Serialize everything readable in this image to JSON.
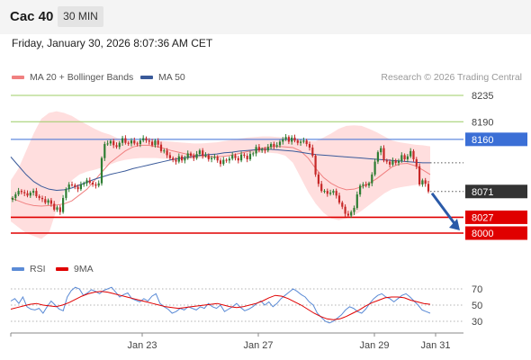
{
  "header": {
    "instrument": "Cac 40",
    "timeframe": "30 MIN"
  },
  "datetime": "Friday, January 30, 2026 8:07:36 AM CET",
  "legend": {
    "bollinger": "MA 20 + Bollinger Bands",
    "ma50": "MA 50",
    "credit": "Research © 2026 Trading Central"
  },
  "rsi_legend": {
    "rsi": "RSI",
    "ma9": "9MA"
  },
  "colors": {
    "candle_up": "#2e7d32",
    "candle_down": "#c62828",
    "bollinger_fill": "#ffd3d3",
    "ma20": "#f08080",
    "ma50": "#3a5a9a",
    "resistance": "#3b6fd6",
    "support": "#e00000",
    "target_line": "#9ccc65",
    "last_price": "#333333",
    "arrow": "#2a5aa8",
    "rsi": "#5b8bd6",
    "rsi_ma": "#e00000"
  },
  "chart_data": [
    {
      "type": "candlestick",
      "title": "Cac 40",
      "ylim": [
        7975,
        8250
      ],
      "x_ticks": [
        "Jan 23",
        "Jan 27",
        "Jan 29",
        "Jan 31"
      ],
      "levels": [
        {
          "value": 8235,
          "label": "8235",
          "kind": "target"
        },
        {
          "value": 8190,
          "label": "8190",
          "kind": "target"
        },
        {
          "value": 8160,
          "label": "8160",
          "kind": "resistance"
        },
        {
          "value": 8071,
          "label": "8071",
          "kind": "last"
        },
        {
          "value": 8027,
          "label": "8027",
          "kind": "support"
        },
        {
          "value": 8000,
          "label": "8000",
          "kind": "support"
        }
      ],
      "close": [
        8060,
        8066,
        8072,
        8070,
        8068,
        8064,
        8069,
        8072,
        8063,
        8060,
        8058,
        8052,
        8056,
        8050,
        8040,
        8044,
        8036,
        8060,
        8075,
        8083,
        8082,
        8079,
        8075,
        8083,
        8085,
        8090,
        8086,
        8083,
        8081,
        8085,
        8128,
        8152,
        8153,
        8157,
        8150,
        8147,
        8154,
        8162,
        8154,
        8153,
        8158,
        8153,
        8152,
        8158,
        8162,
        8158,
        8156,
        8150,
        8158,
        8151,
        8140,
        8141,
        8133,
        8128,
        8125,
        8122,
        8131,
        8124,
        8128,
        8136,
        8132,
        8128,
        8135,
        8141,
        8132,
        8133,
        8126,
        8128,
        8130,
        8124,
        8118,
        8125,
        8124,
        8127,
        8133,
        8128,
        8124,
        8134,
        8132,
        8126,
        8135,
        8136,
        8147,
        8141,
        8143,
        8141,
        8147,
        8152,
        8148,
        8150,
        8156,
        8160,
        8164,
        8156,
        8163,
        8158,
        8154,
        8156,
        8158,
        8152,
        8146,
        8132,
        8100,
        8084,
        8072,
        8072,
        8067,
        8069,
        8072,
        8064,
        8052,
        8045,
        8033,
        8030,
        8036,
        8043,
        8066,
        8081,
        8083,
        8081,
        8085,
        8100,
        8122,
        8138,
        8145,
        8124,
        8122,
        8117,
        8124,
        8120,
        8123,
        8133,
        8126,
        8131,
        8140,
        8126,
        8114,
        8083,
        8090,
        8084,
        8071
      ],
      "ma20": [
        8060,
        8055,
        8050,
        8047,
        8046,
        8047,
        8048,
        8050,
        8055,
        8065,
        8075,
        8090,
        8105,
        8120,
        8130,
        8140,
        8147,
        8150,
        8150,
        8148,
        8145,
        8141,
        8138,
        8135,
        8133,
        8132,
        8130,
        8130,
        8131,
        8133,
        8136,
        8139,
        8142,
        8145,
        8147,
        8148,
        8147,
        8146,
        8140,
        8128,
        8110,
        8095,
        8085,
        8078,
        8074,
        8075,
        8079,
        8085,
        8093,
        8103,
        8113,
        8118,
        8119,
        8115,
        8108,
        8100
      ],
      "ma50": [
        8130,
        8115,
        8100,
        8088,
        8080,
        8075,
        8073,
        8074,
        8077,
        8082,
        8087,
        8092,
        8096,
        8100,
        8103,
        8106,
        8110,
        8113,
        8116,
        8119,
        8122,
        8125,
        8127,
        8129,
        8131,
        8133,
        8134,
        8135,
        8137,
        8138,
        8140,
        8141,
        8142,
        8143,
        8143,
        8142,
        8141,
        8140,
        8138,
        8136,
        8134,
        8133,
        8132,
        8131,
        8130,
        8129,
        8128,
        8127,
        8126,
        8125,
        8124,
        8123,
        8122,
        8121,
        8120,
        8120
      ],
      "bb_upper": [
        8090,
        8110,
        8140,
        8170,
        8195,
        8205,
        8208,
        8205,
        8200,
        8192,
        8185,
        8178,
        8172,
        8168,
        8162,
        8160,
        8158,
        8157,
        8157,
        8157,
        8157,
        8156,
        8155,
        8154,
        8153,
        8153,
        8154,
        8155,
        8157,
        8159,
        8161,
        8163,
        8164,
        8165,
        8165,
        8164,
        8163,
        8161,
        8158,
        8157,
        8157,
        8163,
        8170,
        8178,
        8183,
        8184,
        8183,
        8178,
        8172,
        8165,
        8158,
        8155,
        8153,
        8151,
        8150,
        8148
      ],
      "bb_lower": [
        8020,
        8010,
        8000,
        7995,
        7990,
        8000,
        8040,
        8070,
        8090,
        8100,
        8105,
        8108,
        8112,
        8117,
        8122,
        8125,
        8127,
        8128,
        8128,
        8128,
        8127,
        8127,
        8126,
        8126,
        8127,
        8128,
        8129,
        8130,
        8131,
        8133,
        8134,
        8135,
        8136,
        8137,
        8137,
        8136,
        8132,
        8120,
        8095,
        8070,
        8050,
        8035,
        8025,
        8022,
        8025,
        8030,
        8038,
        8048,
        8058,
        8068,
        8075,
        8078,
        8080,
        8082,
        8084,
        8086
      ]
    },
    {
      "type": "line",
      "title": "RSI",
      "ylim": [
        20,
        80
      ],
      "y_ticks": [
        70,
        50,
        30
      ],
      "series": [
        {
          "name": "RSI",
          "values": [
            55,
            58,
            52,
            60,
            48,
            45,
            44,
            46,
            40,
            48,
            55,
            50,
            45,
            43,
            60,
            68,
            72,
            70,
            62,
            65,
            69,
            67,
            64,
            68,
            70,
            72,
            66,
            60,
            63,
            65,
            58,
            56,
            54,
            58,
            55,
            61,
            64,
            52,
            48,
            45,
            40,
            42,
            46,
            44,
            48,
            46,
            44,
            48,
            46,
            52,
            48,
            46,
            50,
            42,
            45,
            48,
            52,
            47,
            43,
            45,
            48,
            52,
            55,
            50,
            54,
            48,
            52,
            58,
            62,
            66,
            70,
            67,
            63,
            60,
            54,
            50,
            40,
            35,
            30,
            28,
            30,
            34,
            38,
            44,
            48,
            46,
            42,
            40,
            45,
            52,
            58,
            62,
            64,
            60,
            58,
            54,
            58,
            62,
            64,
            60,
            55,
            50,
            44,
            42,
            40
          ]
        },
        {
          "name": "9MA",
          "values": [
            45,
            47,
            49,
            51,
            52,
            50,
            49,
            48,
            50,
            53,
            57,
            61,
            64,
            66,
            67,
            66,
            64,
            62,
            60,
            58,
            56,
            54,
            52,
            50,
            48,
            47,
            46,
            47,
            48,
            49,
            50,
            51,
            52,
            50,
            48,
            47,
            48,
            50,
            52,
            55,
            59,
            62,
            61,
            58,
            54,
            50,
            45,
            40,
            36,
            33,
            32,
            33,
            36,
            40,
            44,
            49,
            53,
            56,
            59,
            60,
            60,
            59,
            56,
            54,
            52,
            51
          ]
        }
      ]
    }
  ]
}
